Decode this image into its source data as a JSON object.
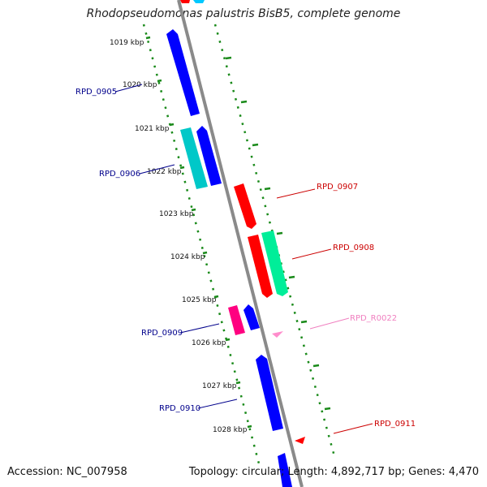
{
  "title": "Rhodopseudomonas palustris BisB5, complete genome",
  "footer": {
    "accession": "Accession: NC_007958",
    "summary": "Topology: circular; Length: 4,892,717 bp; Genes: 4,470"
  },
  "colors": {
    "backbone": "#8a8a8a",
    "tick": "#1a8a1a",
    "strand_minus_gene": "#0000ff",
    "strand_minus_alt": "#00c8c8",
    "strand_plus_gene": "#ff0000",
    "strand_plus_alt": "#00ee99",
    "rna": "#ff8ccc"
  },
  "kbp_labels": [
    "1019 kbp",
    "1020 kbp",
    "1021 kbp",
    "1022 kbp",
    "1023 kbp",
    "1024 kbp",
    "1025 kbp",
    "1026 kbp",
    "1027 kbp",
    "1028 kbp"
  ],
  "gene_labels": [
    {
      "text": "RPD_0905",
      "color": "#00008b"
    },
    {
      "text": "RPD_0906",
      "color": "#00008b"
    },
    {
      "text": "RPD_0907",
      "color": "#cc0000"
    },
    {
      "text": "RPD_0908",
      "color": "#cc0000"
    },
    {
      "text": "RPD_R0022",
      "color": "#f080c0"
    },
    {
      "text": "RPD_0909",
      "color": "#00008b"
    },
    {
      "text": "RPD_0910",
      "color": "#00008b"
    },
    {
      "text": "RPD_0911",
      "color": "#cc0000"
    }
  ]
}
